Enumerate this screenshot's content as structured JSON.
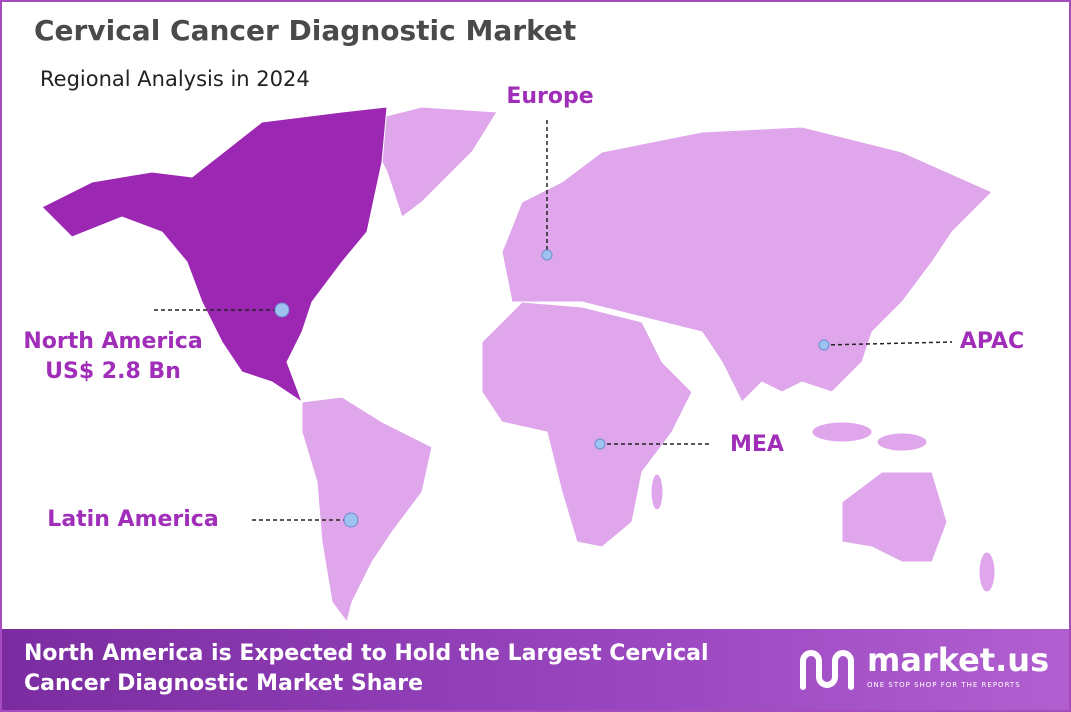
{
  "header": {
    "title": "Cervical Cancer Diagnostic Market",
    "subtitle": "Regional Analysis in 2024"
  },
  "regions": [
    {
      "label": "North America",
      "value": "US$ 2.8 Bn"
    },
    {
      "label": "Europe"
    },
    {
      "label": "APAC"
    },
    {
      "label": "MEA"
    },
    {
      "label": "Latin America"
    }
  ],
  "footer": {
    "text": "North America is Expected to Hold the Largest Cervical Cancer Diagnostic Market Share",
    "brand": "market.us",
    "tagline": "ONE STOP SHOP FOR THE REPORTS"
  }
}
